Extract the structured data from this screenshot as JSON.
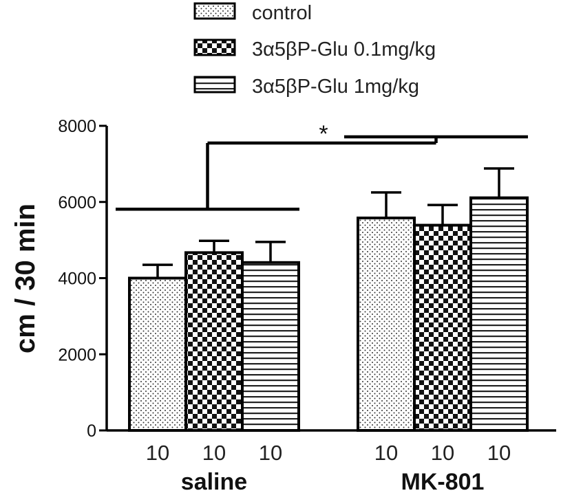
{
  "chart_data": {
    "type": "bar",
    "title": "",
    "xlabel": "",
    "ylabel": "cm / 30 min",
    "ylim": [
      0,
      8000
    ],
    "yticks": [
      "0",
      "2000",
      "4000",
      "6000",
      "8000"
    ],
    "groups": [
      "saline",
      "MK-801"
    ],
    "series": [
      {
        "name": "control",
        "pattern": "dots",
        "values": [
          4000,
          5580
        ],
        "errors": [
          350,
          670
        ],
        "n": [
          "10",
          "10"
        ]
      },
      {
        "name": "3α5βP-Glu 0.1mg/kg",
        "pattern": "checker",
        "values": [
          4670,
          5390
        ],
        "errors": [
          310,
          530
        ],
        "n": [
          "10",
          "10"
        ]
      },
      {
        "name": "3α5βP-Glu 1mg/kg",
        "pattern": "hlines",
        "values": [
          4410,
          6110
        ],
        "errors": [
          540,
          770
        ],
        "n": [
          "10",
          "10"
        ]
      }
    ],
    "annotations": [
      {
        "text": "*",
        "meaning": "significance bracket between saline and MK-801"
      }
    ],
    "grid": false,
    "legend_position": "top"
  }
}
